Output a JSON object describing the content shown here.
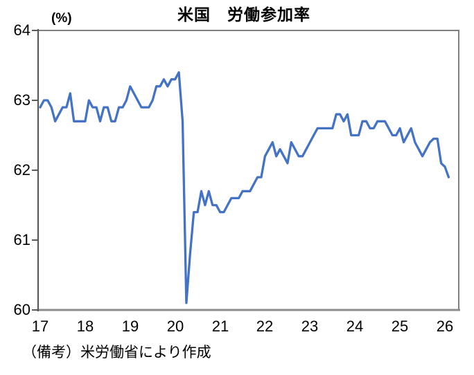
{
  "title": "米国　労働参加率",
  "unit_label": "(%)",
  "footnote": "（備考）米労働省により作成",
  "axes": {
    "y_ticks": [
      "64",
      "63",
      "62",
      "61",
      "60"
    ],
    "x_ticks": [
      "17",
      "18",
      "19",
      "20",
      "21",
      "22",
      "23",
      "24",
      "25",
      "26"
    ]
  },
  "chart_data": {
    "type": "line",
    "title": "米国　労働参加率",
    "ylabel": "(%)",
    "ylim": [
      60,
      64
    ],
    "xlabel": "",
    "x_tick_labels": [
      "17",
      "18",
      "19",
      "20",
      "21",
      "22",
      "23",
      "24",
      "25",
      "26"
    ],
    "x_frequency": "monthly",
    "x_start": "2017-01",
    "x_end": "2026-02",
    "grid": false,
    "legend": false,
    "line_color": "#4472C4",
    "axis_color": "#808080",
    "source_note": "（備考）米労働省により作成",
    "series": [
      {
        "name": "労働参加率",
        "values": [
          62.9,
          63.0,
          63.0,
          62.9,
          62.7,
          62.8,
          62.9,
          62.9,
          63.1,
          62.7,
          62.7,
          62.7,
          62.7,
          63.0,
          62.9,
          62.9,
          62.7,
          62.9,
          62.9,
          62.7,
          62.7,
          62.9,
          62.9,
          63.0,
          63.2,
          63.1,
          63.0,
          62.9,
          62.9,
          62.9,
          63.0,
          63.2,
          63.2,
          63.3,
          63.2,
          63.3,
          63.3,
          63.4,
          62.7,
          60.1,
          60.8,
          61.4,
          61.4,
          61.7,
          61.5,
          61.7,
          61.5,
          61.5,
          61.4,
          61.4,
          61.5,
          61.6,
          61.6,
          61.6,
          61.7,
          61.7,
          61.7,
          61.8,
          61.9,
          61.9,
          62.2,
          62.3,
          62.4,
          62.2,
          62.3,
          62.2,
          62.1,
          62.4,
          62.3,
          62.2,
          62.2,
          62.3,
          62.4,
          62.5,
          62.6,
          62.6,
          62.6,
          62.6,
          62.6,
          62.8,
          62.8,
          62.7,
          62.8,
          62.5,
          62.5,
          62.5,
          62.7,
          62.7,
          62.6,
          62.6,
          62.7,
          62.7,
          62.7,
          62.6,
          62.5,
          62.5,
          62.6,
          62.4,
          62.5,
          62.6,
          62.4,
          62.3,
          62.2,
          62.3,
          62.4,
          62.45,
          62.45,
          62.1,
          62.05,
          61.9
        ]
      }
    ]
  }
}
